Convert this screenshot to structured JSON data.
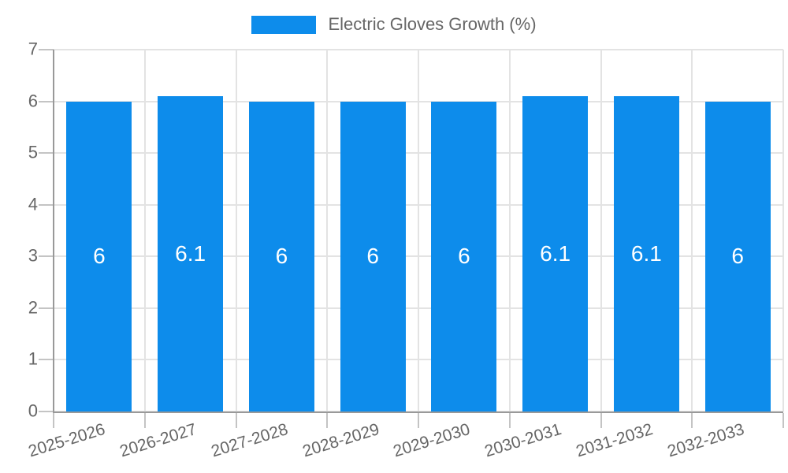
{
  "chart_data": {
    "type": "bar",
    "title": "Electric Gloves Growth (%)",
    "legend_position": "top",
    "categories": [
      "2025-2026",
      "2026-2027",
      "2027-2028",
      "2028-2029",
      "2029-2030",
      "2030-2031",
      "2031-2032",
      "2032-2033"
    ],
    "series": [
      {
        "name": "Electric Gloves Growth (%)",
        "values": [
          6,
          6.1,
          6,
          6,
          6,
          6.1,
          6.1,
          6
        ]
      }
    ],
    "y_ticks": [
      0,
      1,
      2,
      3,
      4,
      5,
      6,
      7
    ],
    "ylim": [
      0,
      7
    ],
    "grid": true,
    "xlabel": "",
    "ylabel": "",
    "colors": {
      "bar": "#0d8ceb",
      "bar_label": "#ffffff",
      "axis_text": "#666666",
      "grid_line": "#e3e3e3",
      "axis_line": "#999999"
    }
  }
}
